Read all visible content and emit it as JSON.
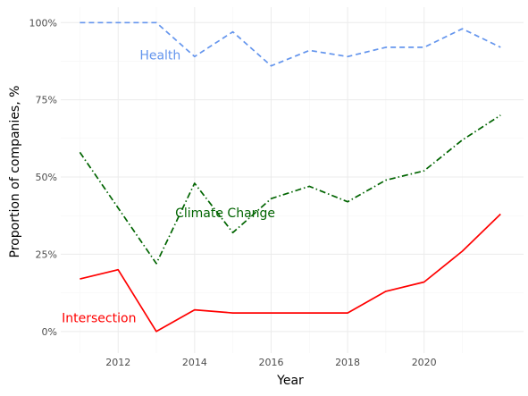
{
  "chart_data": {
    "type": "line",
    "xlabel": "Year",
    "ylabel": "Proportion of companies, %",
    "xlim": [
      2010.5,
      2022.6
    ],
    "ylim": [
      -0.07,
      1.05
    ],
    "x_ticks": [
      2012,
      2014,
      2016,
      2018,
      2020
    ],
    "y_ticks": [
      0,
      0.25,
      0.5,
      0.75,
      1.0
    ],
    "y_tick_labels": [
      "0%",
      "25%",
      "50%",
      "75%",
      "100%"
    ],
    "grid": true,
    "x": [
      2011,
      2012,
      2013,
      2014,
      2015,
      2016,
      2017,
      2018,
      2019,
      2020,
      2021,
      2022
    ],
    "series": [
      {
        "name": "Health",
        "color": "#6495ED",
        "dash": "dashed",
        "values": [
          1.0,
          1.0,
          1.0,
          0.89,
          0.97,
          0.86,
          0.91,
          0.89,
          0.92,
          0.92,
          0.98,
          0.92
        ],
        "label_at": [
          2013.1,
          0.895
        ]
      },
      {
        "name": "Climate Change",
        "color": "#006400",
        "dash": "dashdot",
        "values": [
          0.58,
          0.4,
          0.22,
          0.48,
          0.32,
          0.43,
          0.47,
          0.42,
          0.49,
          0.52,
          0.62,
          0.7
        ],
        "label_at": [
          2014.8,
          0.385
        ]
      },
      {
        "name": "Intersection",
        "color": "#FF0000",
        "dash": "solid",
        "values": [
          0.17,
          0.2,
          0.0,
          0.07,
          0.06,
          0.06,
          0.06,
          0.06,
          0.13,
          0.16,
          0.26,
          0.38
        ],
        "label_at": [
          2011.5,
          0.045
        ]
      }
    ]
  }
}
